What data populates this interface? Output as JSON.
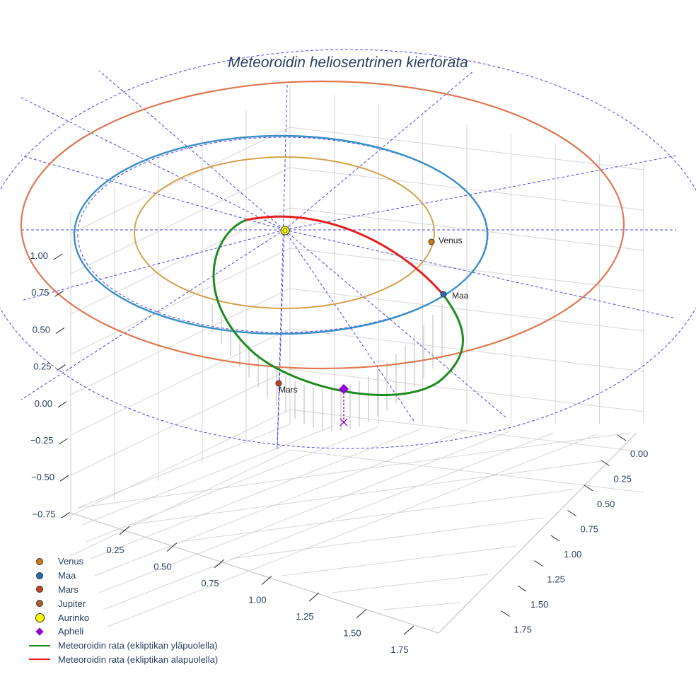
{
  "chart_data": {
    "type": "scatter3d",
    "title": "Meteoroidin heliosentrinen kiertorata",
    "axes": {
      "z_ticks": [
        "1.00",
        "0.75",
        "0.50",
        "0.25",
        "0.00",
        "−0.25",
        "−0.50",
        "−0.75"
      ],
      "x_ticks": [
        "0.25",
        "0.50",
        "0.75",
        "1.00",
        "1.25",
        "1.50",
        "1.75"
      ],
      "y_ticks": [
        "0.00",
        "0.25",
        "0.50",
        "0.75",
        "1.00",
        "1.25",
        "1.50",
        "1.75"
      ],
      "zlim": [
        -0.75,
        1.0
      ],
      "xlim": [
        0.25,
        1.75
      ],
      "ylim": [
        0.0,
        1.75
      ]
    },
    "series": [
      {
        "name": "Venus",
        "kind": "marker",
        "color": "#d17a12"
      },
      {
        "name": "Maa",
        "kind": "marker",
        "color": "#1f6fb4"
      },
      {
        "name": "Mars",
        "kind": "marker",
        "color": "#c4421a"
      },
      {
        "name": "Jupiter",
        "kind": "marker",
        "color": "#b0602a"
      },
      {
        "name": "Aurinko",
        "kind": "marker",
        "color": "#ffff00"
      },
      {
        "name": "Apheli",
        "kind": "marker",
        "color": "#9400d3"
      },
      {
        "name": "Meteoroidin rata (ekliptikan yläpuolella)",
        "kind": "line",
        "color": "#1e8c1e"
      },
      {
        "name": "Meteoroidin rata (ekliptikan alapuolella)",
        "kind": "line",
        "color": "#e61e1e"
      }
    ],
    "point_labels": {
      "venus": "Venus",
      "earth": "Maa",
      "mars": "Mars"
    },
    "orbit_colors": {
      "venus": "#d4a24c",
      "earth": "#3a8fc7",
      "mars_outer": "#e07850",
      "guide": "#4444ee",
      "grid": "#d6d6d6",
      "drop": "#bbbbbb"
    }
  }
}
